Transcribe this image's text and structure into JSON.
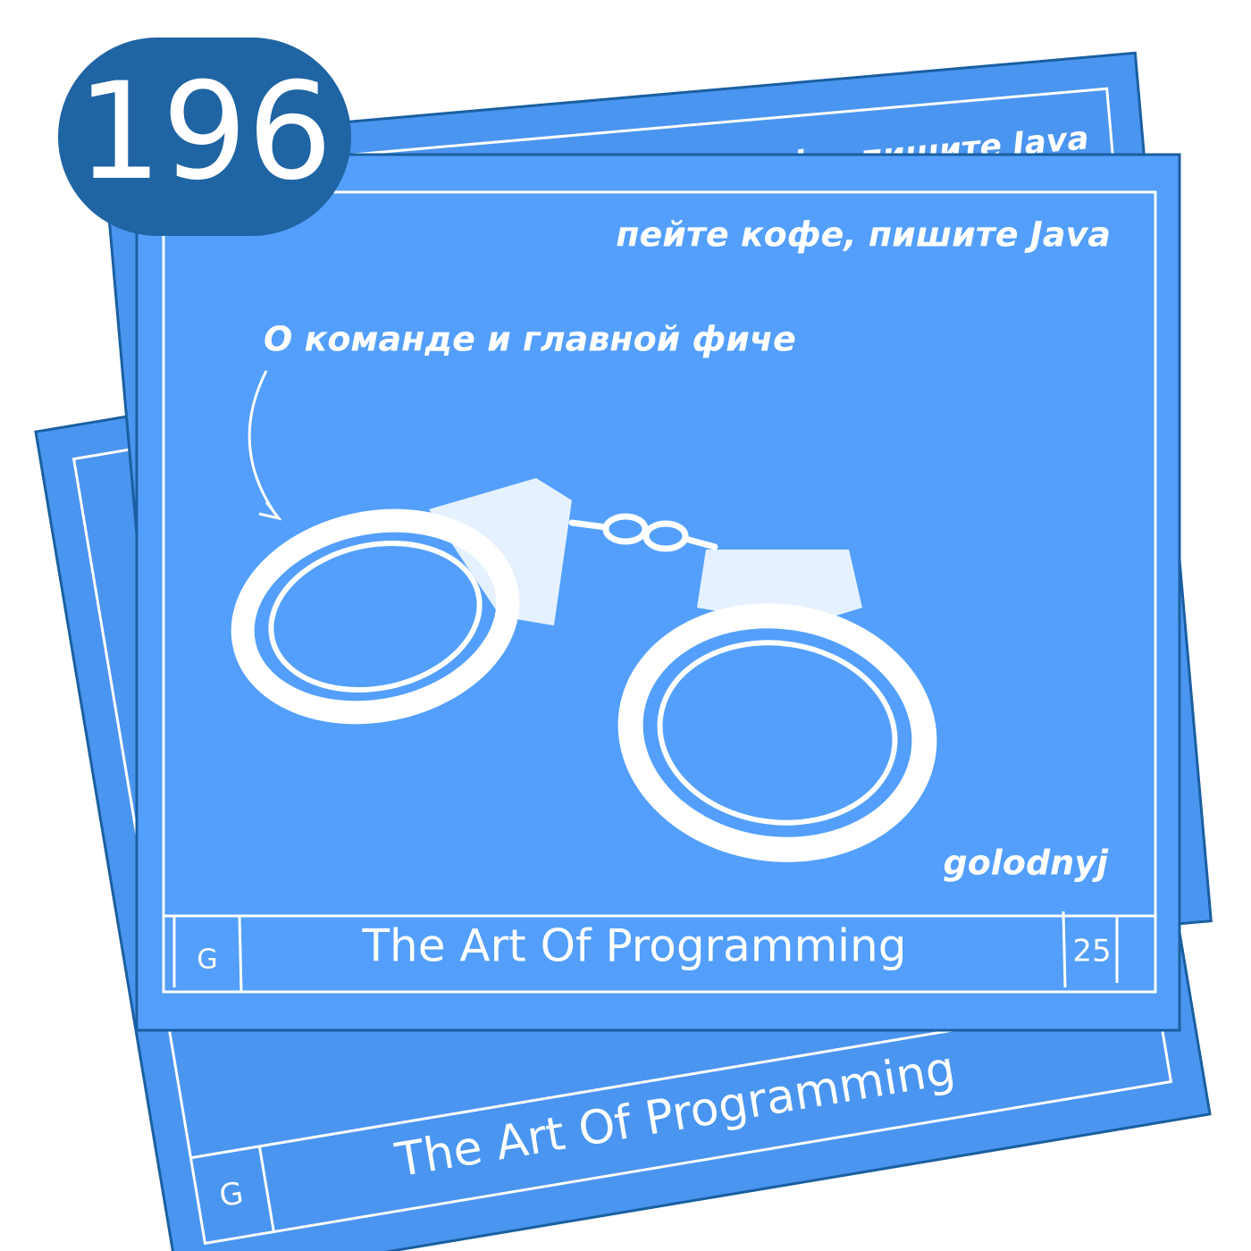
{
  "badge": {
    "number": "196"
  },
  "card": {
    "slogan": "пейте кофе, пишите Java",
    "callout": "О команде и главной фиче",
    "author": "golodnyj",
    "corner_letter": "G",
    "title": "The Art Of Programming",
    "page": "25"
  },
  "back_card_top": {
    "slogan": "пейте кофе, пишите Java"
  },
  "back_card_bottom": {
    "title": "The Art Of Programming",
    "corner_letter": "G"
  }
}
